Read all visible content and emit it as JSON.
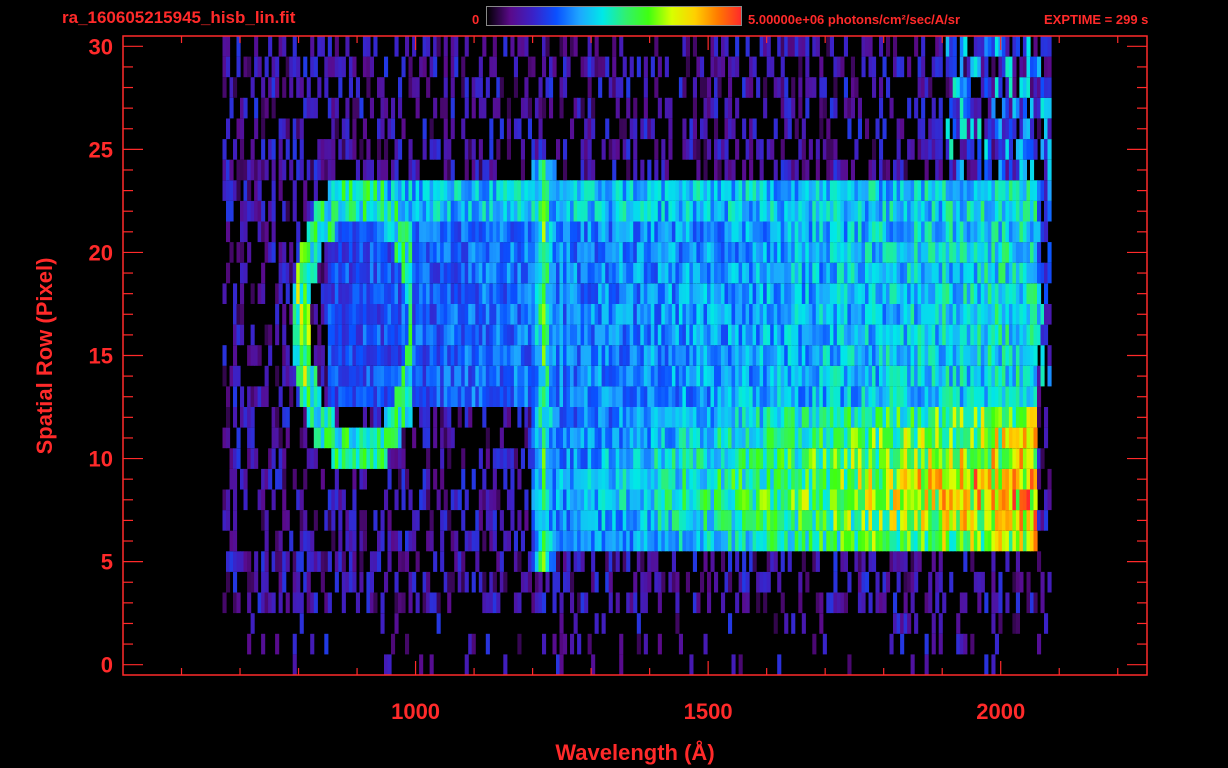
{
  "header": {
    "file_title": "ra_160605215945_hisb_lin.fit",
    "colorbar_min": "0",
    "colorbar_max_label": "5.00000e+06 photons/cm²/sec/A/sr",
    "exptime": "EXPTIME = 299 s"
  },
  "colors": {
    "axis": "#ff2a2a",
    "background": "#000000",
    "colormap": [
      "#000000",
      "#5a0a8a",
      "#3a22c8",
      "#0a50ff",
      "#1ea6ff",
      "#00e8e8",
      "#30f070",
      "#40ff10",
      "#d8ff00",
      "#ffd000",
      "#ff7a00",
      "#ff2a2a"
    ]
  },
  "chart_data": {
    "type": "heatmap",
    "xlabel": "Wavelength (Å)",
    "ylabel": "Spatial Row (Pixel)",
    "xlim": [
      500,
      2250
    ],
    "ylim": [
      -0.5,
      30.5
    ],
    "xticks": [
      1000,
      1500,
      2000
    ],
    "yticks": [
      0,
      5,
      10,
      15,
      20,
      25,
      30
    ],
    "colorbar": {
      "min": 0,
      "max": 5000000,
      "units": "photons/cm2/sec/A/sr"
    },
    "grid": false,
    "features": [
      {
        "label": "",
        "kind": "emission line",
        "x": 1216,
        "y_range": [
          5,
          24
        ],
        "intensity": 0.55
      },
      {
        "label": "",
        "kind": "arc",
        "x_range": [
          790,
          990
        ],
        "y_range": [
          10,
          23
        ],
        "intensity": 0.5
      },
      {
        "label": "",
        "kind": "continuum",
        "x_range": [
          1216,
          2060
        ],
        "y_range": [
          6,
          12
        ],
        "intensity_start": 0.35,
        "intensity_end": 0.85
      },
      {
        "label": "",
        "kind": "band",
        "x_range": [
          850,
          2060
        ],
        "y_range": [
          13,
          23
        ],
        "intensity": 0.25
      }
    ],
    "data_x_range": [
      670,
      2080
    ],
    "data_y_range": [
      0,
      30
    ]
  }
}
